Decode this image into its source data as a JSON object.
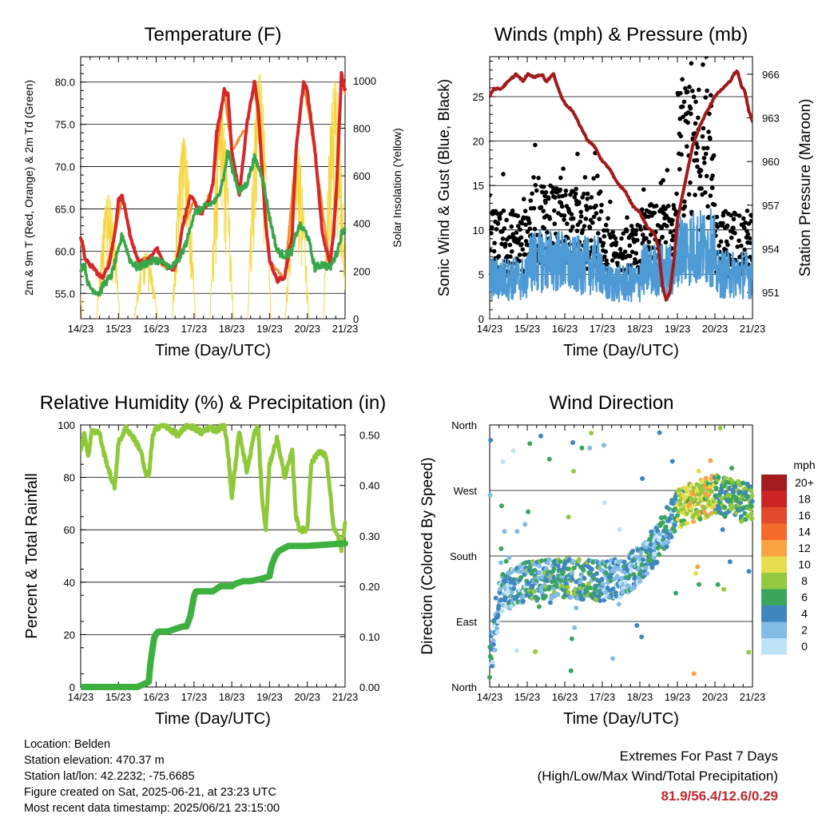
{
  "chart_data": [
    {
      "type": "line",
      "title": "Temperature (F)",
      "xlabel": "Time (Day/UTC)",
      "ylabel": "2m & 9m T (Red, Orange) & 2m Td (Green)",
      "y2label": "Solar Insolation (Yellow)",
      "x_ticks": [
        "14/23",
        "15/23",
        "16/23",
        "17/23",
        "18/23",
        "19/23",
        "20/23",
        "21/23"
      ],
      "ylim": [
        52.0,
        83.0
      ],
      "y_ticks": [
        "55.0",
        "60.0",
        "65.0",
        "70.0",
        "75.0",
        "80.0"
      ],
      "y2lim": [
        0,
        1100
      ],
      "y2_ticks": [
        "0",
        "200",
        "400",
        "600",
        "800",
        "1000"
      ],
      "grid": true,
      "series": [
        {
          "color": "#d62728",
          "x": [
            0,
            0.05,
            0.1,
            0.2,
            0.35,
            0.5,
            0.6,
            0.75,
            0.9,
            1.0,
            1.1,
            1.3,
            1.5,
            1.7,
            1.9,
            2.0,
            2.2,
            2.4,
            2.5,
            2.6,
            2.7,
            2.9,
            3.0,
            3.1,
            3.2,
            3.4,
            3.5,
            3.6,
            3.8,
            3.9,
            4.0,
            4.2,
            4.4,
            4.6,
            4.7,
            4.8,
            4.9,
            5.0,
            5.2,
            5.4,
            5.6,
            5.7,
            5.9,
            6.0,
            6.2,
            6.4,
            6.6,
            6.7,
            6.8,
            6.9,
            7.0
          ],
          "y": [
            61.5,
            61,
            59.5,
            58.5,
            58,
            57,
            57,
            58.5,
            62,
            66,
            66.5,
            62,
            59,
            58.5,
            59.5,
            60.5,
            58.5,
            58,
            58,
            60,
            63,
            66.5,
            66,
            65,
            64.5,
            66,
            68,
            74,
            79,
            78.5,
            72,
            66.5,
            75,
            80,
            77,
            70,
            63,
            59,
            56.5,
            57,
            62,
            72,
            80,
            79,
            72,
            62,
            58.5,
            62,
            70,
            81,
            79
          ]
        },
        {
          "color": "#f28c28",
          "x": [
            0,
            0.1,
            0.35,
            0.6,
            0.9,
            1.1,
            1.5,
            1.9,
            2.2,
            2.5,
            2.7,
            3.0,
            3.2,
            3.5,
            3.8,
            4.0,
            4.4,
            4.6,
            4.8,
            5.0,
            5.4,
            5.7,
            5.9,
            6.2,
            6.6,
            6.8,
            6.9,
            7.0
          ],
          "y": [
            61.3,
            59.3,
            57.8,
            56.8,
            61.8,
            66.3,
            58.8,
            59.3,
            58.3,
            57.8,
            62.8,
            65.8,
            64.3,
            67.8,
            78.8,
            71.8,
            74.8,
            79.8,
            69.8,
            58.8,
            56.8,
            71.8,
            79.8,
            71.8,
            58.3,
            69.8,
            80.8,
            78.8
          ]
        },
        {
          "color": "#3aa64a",
          "x": [
            0,
            0.1,
            0.2,
            0.3,
            0.5,
            0.6,
            0.8,
            1.0,
            1.1,
            1.3,
            1.5,
            1.7,
            2.0,
            2.2,
            2.4,
            2.6,
            2.8,
            3.0,
            3.2,
            3.4,
            3.6,
            3.8,
            3.9,
            4.0,
            4.2,
            4.4,
            4.6,
            4.8,
            5.0,
            5.2,
            5.4,
            5.6,
            5.7,
            5.8,
            6.0,
            6.2,
            6.4,
            6.6,
            6.8,
            6.9,
            7.0
          ],
          "y": [
            58,
            58.5,
            56,
            55.5,
            55,
            56,
            57,
            60,
            62,
            59,
            58,
            58.5,
            59,
            58.5,
            58,
            59,
            61,
            64.5,
            65,
            65.5,
            66,
            69,
            72,
            70,
            67,
            68,
            71,
            69,
            64,
            60,
            59.5,
            60,
            62,
            63,
            62,
            58,
            58.5,
            58,
            60,
            62,
            63
          ]
        }
      ],
      "solar": {
        "color": "#f5d63d",
        "day_peaks": [
          720,
          520,
          280,
          760,
          860,
          1030,
          720,
          1000
        ]
      }
    },
    {
      "type": "line",
      "title": "Winds (mph) & Pressure (mb)",
      "xlabel": "Time (Day/UTC)",
      "ylabel": "Sonic Wind & Gust (Blue, Black)",
      "y2label": "Station Pressure (Maroon)",
      "x_ticks": [
        "14/23",
        "15/23",
        "16/23",
        "17/23",
        "18/23",
        "19/23",
        "20/23",
        "21/23"
      ],
      "ylim": [
        0,
        29.5
      ],
      "y_ticks": [
        "0",
        "5",
        "10",
        "15",
        "20",
        "25"
      ],
      "y2lim": [
        949.2,
        967.2
      ],
      "y2_ticks": [
        "951",
        "954",
        "957",
        "960",
        "963",
        "966"
      ],
      "grid": true,
      "pressure": {
        "color": "#a21b1b",
        "x": [
          0,
          0.1,
          0.3,
          0.5,
          0.7,
          0.9,
          1.0,
          1.2,
          1.4,
          1.5,
          1.7,
          1.9,
          2.0,
          2.2,
          2.4,
          2.6,
          2.8,
          3.0,
          3.2,
          3.4,
          3.6,
          3.8,
          4.0,
          4.2,
          4.4,
          4.5,
          4.6,
          4.7,
          4.8,
          4.9,
          5.0,
          5.2,
          5.4,
          5.6,
          5.8,
          6.0,
          6.2,
          6.4,
          6.5,
          6.6,
          6.7,
          6.8,
          6.9,
          7.0
        ],
        "y": [
          964.5,
          965,
          965,
          965.5,
          966,
          965.5,
          966,
          965.8,
          966,
          965.5,
          966,
          964.5,
          964,
          963.5,
          962.5,
          961.5,
          961,
          960,
          959.5,
          958.5,
          958,
          957,
          956.5,
          955.5,
          955,
          954,
          951.5,
          950.5,
          951,
          953,
          956,
          958.5,
          961,
          962.5,
          963.5,
          964.5,
          965,
          965.5,
          966,
          966.2,
          965.2,
          964.8,
          963.5,
          962.8
        ]
      },
      "sustained": {
        "color": "#4e9ad4",
        "day_means": [
          4.5,
          6.5,
          6.0,
          4.0,
          5.5,
          8.0,
          5.0,
          6.0
        ]
      },
      "gust": {
        "color": "#000000",
        "day_means": [
          8.5,
          11.0,
          10.0,
          7.0,
          9.0,
          18.0,
          8.5,
          12.0
        ]
      }
    },
    {
      "type": "line",
      "title": "Relative Humidity (%) & Precipitation (in)",
      "xlabel": "Time (Day/UTC)",
      "ylabel": "Percent & Total Rainfall",
      "x_ticks": [
        "14/23",
        "15/23",
        "16/23",
        "17/23",
        "18/23",
        "19/23",
        "20/23",
        "21/23"
      ],
      "ylim": [
        0,
        100
      ],
      "y_ticks": [
        "0",
        "20",
        "40",
        "60",
        "80",
        "100"
      ],
      "y2lim": [
        0,
        0.52
      ],
      "y2_ticks": [
        "0.00",
        "0.10",
        "0.20",
        "0.30",
        "0.40",
        "0.50"
      ],
      "grid": true,
      "series": [
        {
          "color": "#8fc93a",
          "axis": "left",
          "x": [
            0,
            0.1,
            0.2,
            0.3,
            0.5,
            0.6,
            0.8,
            0.9,
            1.0,
            1.2,
            1.4,
            1.6,
            1.7,
            1.8,
            1.9,
            2.0,
            2.2,
            2.4,
            2.6,
            2.8,
            3.0,
            3.2,
            3.4,
            3.6,
            3.8,
            3.9,
            4.0,
            4.2,
            4.4,
            4.6,
            4.7,
            4.8,
            4.9,
            5.0,
            5.2,
            5.4,
            5.6,
            5.7,
            5.8,
            6.0,
            6.1,
            6.3,
            6.5,
            6.6,
            6.7,
            6.8,
            6.9,
            7.0
          ],
          "y": [
            90,
            97,
            88,
            98,
            97,
            90,
            80,
            76,
            93,
            99,
            95,
            90,
            82,
            80,
            95,
            99,
            100,
            98,
            96,
            100,
            99,
            97,
            99,
            98,
            100,
            90,
            72,
            98,
            82,
            97,
            99,
            72,
            60,
            85,
            95,
            80,
            90,
            65,
            60,
            60,
            85,
            90,
            88,
            75,
            60,
            58,
            52,
            62
          ]
        },
        {
          "color": "#3db040",
          "axis": "right",
          "x": [
            0,
            1.5,
            1.8,
            1.85,
            1.95,
            2.05,
            2.3,
            2.5,
            2.7,
            2.8,
            2.9,
            3.0,
            3.05,
            3.2,
            3.5,
            3.7,
            3.9,
            4.0,
            4.1,
            4.3,
            4.5,
            4.8,
            5.0,
            5.05,
            5.15,
            5.25,
            5.5,
            6.0,
            7.0
          ],
          "y": [
            0,
            0,
            0.01,
            0.05,
            0.1,
            0.11,
            0.11,
            0.115,
            0.12,
            0.12,
            0.14,
            0.18,
            0.19,
            0.19,
            0.19,
            0.2,
            0.2,
            0.2,
            0.205,
            0.21,
            0.21,
            0.215,
            0.22,
            0.24,
            0.26,
            0.27,
            0.28,
            0.28,
            0.285
          ]
        }
      ]
    },
    {
      "type": "scatter",
      "title": "Wind Direction",
      "xlabel": "Time (Day/UTC)",
      "ylabel": "Direction (Colored By Speed)",
      "x_ticks": [
        "14/23",
        "15/23",
        "16/23",
        "17/23",
        "18/23",
        "19/23",
        "20/23",
        "21/23"
      ],
      "y_ticks": [
        "North",
        "East",
        "South",
        "West",
        "North"
      ],
      "ylim": [
        0,
        360
      ],
      "grid": true,
      "direction_by_day": [
        {
          "start": 30,
          "mean": 150
        },
        {
          "mean": 145
        },
        {
          "mean": 150
        },
        {
          "mean": 145
        },
        {
          "mean": 170
        },
        {
          "mean": 245
        },
        {
          "mean": 270
        },
        {
          "mean": 250
        }
      ],
      "legend": {
        "title": "mph",
        "labels": [
          "20+",
          "18",
          "16",
          "14",
          "12",
          "10",
          "8",
          "6",
          "4",
          "2",
          "0"
        ],
        "colors": [
          "#a51c1f",
          "#cc2424",
          "#e24a2c",
          "#f36a2a",
          "#f9a343",
          "#e6dd4c",
          "#93c83f",
          "#3ba55c",
          "#3f86c0",
          "#82bbe3",
          "#bfe3f6"
        ]
      }
    }
  ],
  "info": {
    "location": "Location: Belden",
    "elevation": "Station elevation: 470.37 m",
    "latlon": "Station lat/lon: 42.2232; -75.6685",
    "created": "Figure created on Sat, 2025-06-21, at 23:23 UTC",
    "recent": "Most recent data timestamp: 2025/06/21 23:15:00"
  },
  "extremes": {
    "line1": "Extremes For Past 7 Days",
    "line2": "(High/Low/Max Wind/Total Precipitation)",
    "values": "81.9/56.4/12.6/0.29"
  }
}
